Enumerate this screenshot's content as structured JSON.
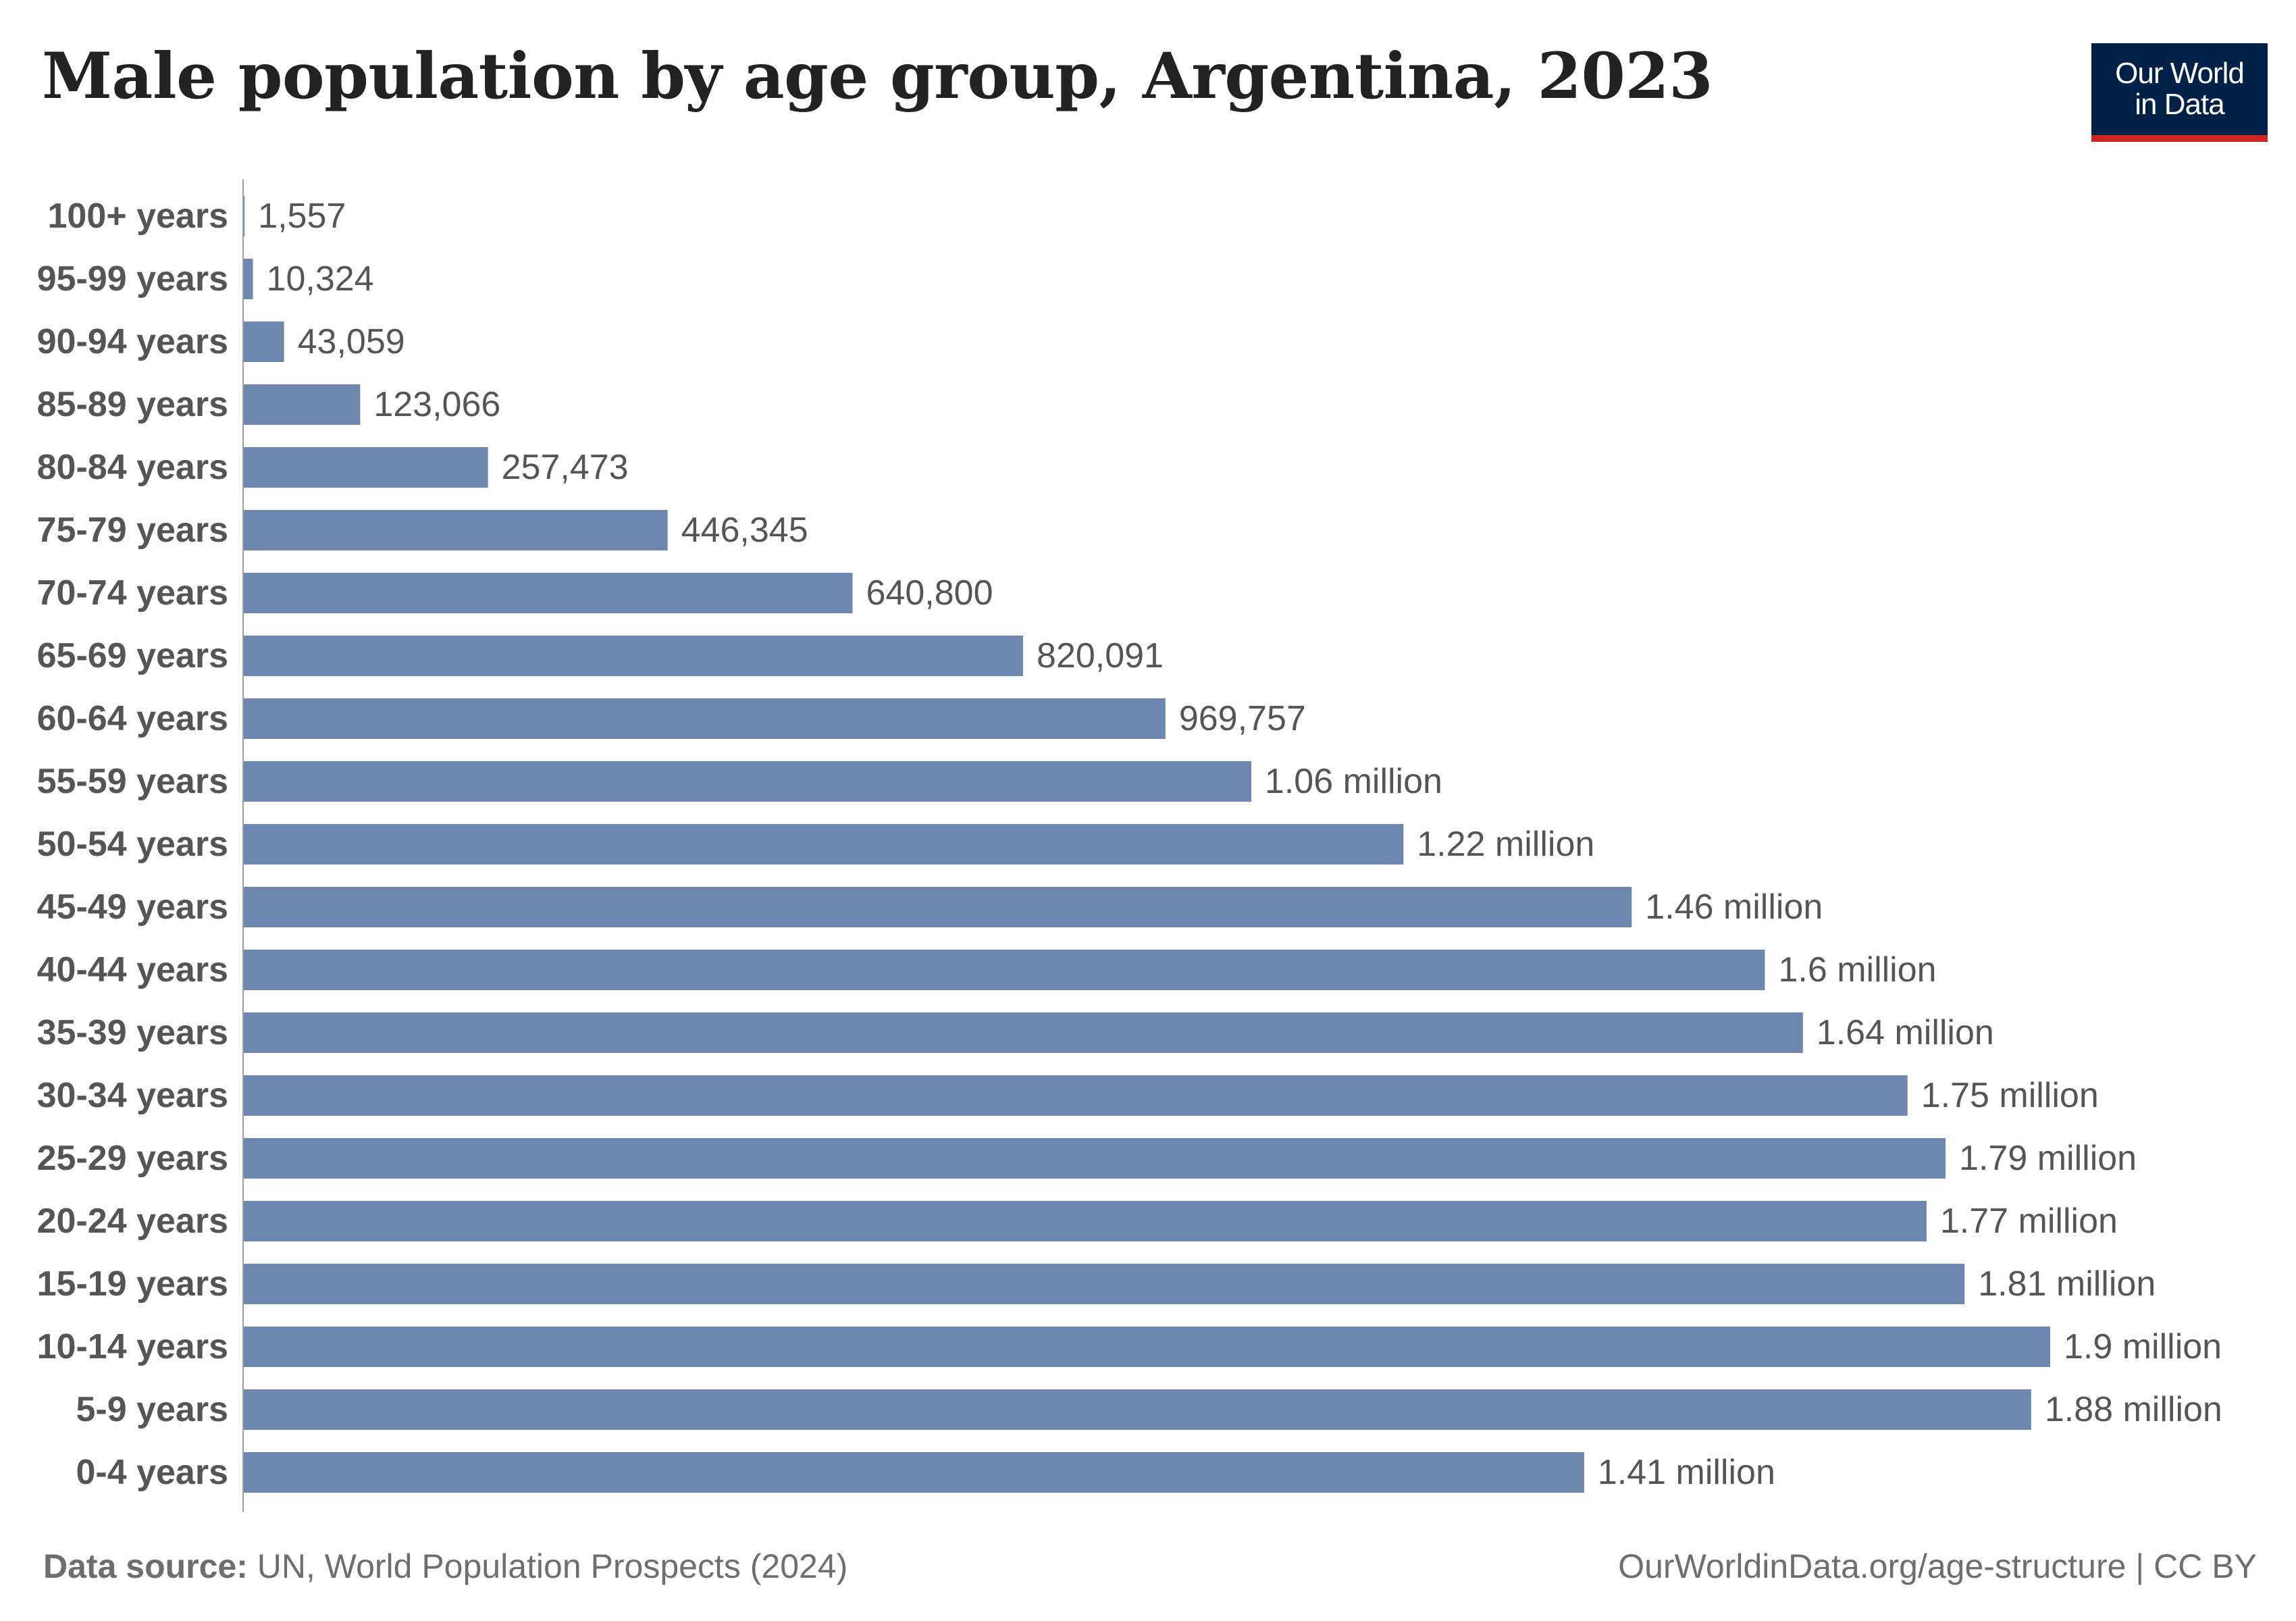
{
  "title": "Male population by age group, Argentina, 2023",
  "logo": {
    "line1": "Our World",
    "line2": "in Data"
  },
  "footer": {
    "source_label": "Data source:",
    "source_text": " UN, World Population Prospects (2024)",
    "url": "OurWorldinData.org/age-structure | CC BY"
  },
  "colors": {
    "bar": "#6d87b0",
    "axis": "#9e9e9e",
    "label": "#555555",
    "value": "#555555",
    "logo_bg": "#002147",
    "logo_stripe": "#ce261e"
  },
  "chart_data": {
    "type": "bar",
    "orientation": "horizontal",
    "categories": [
      "100+ years",
      "95-99 years",
      "90-94 years",
      "85-89 years",
      "80-84 years",
      "75-79 years",
      "70-74 years",
      "65-69 years",
      "60-64 years",
      "55-59 years",
      "50-54 years",
      "45-49 years",
      "40-44 years",
      "35-39 years",
      "30-34 years",
      "25-29 years",
      "20-24 years",
      "15-19 years",
      "10-14 years",
      "5-9 years",
      "0-4 years"
    ],
    "values": [
      1557,
      10324,
      43059,
      123066,
      257473,
      446345,
      640800,
      820091,
      969757,
      1060000,
      1220000,
      1460000,
      1600000,
      1640000,
      1750000,
      1790000,
      1770000,
      1810000,
      1900000,
      1880000,
      1410000
    ],
    "value_labels": [
      "1,557",
      "10,324",
      "43,059",
      "123,066",
      "257,473",
      "446,345",
      "640,800",
      "820,091",
      "969,757",
      "1.06 million",
      "1.22 million",
      "1.46 million",
      "1.6 million",
      "1.64 million",
      "1.75 million",
      "1.79 million",
      "1.77 million",
      "1.81 million",
      "1.9 million",
      "1.88 million",
      "1.41 million"
    ],
    "title": "Male population by age group, Argentina, 2023",
    "xlabel": "",
    "ylabel": "",
    "xlim": [
      0,
      1900000
    ],
    "grid": false,
    "legend": "none"
  }
}
